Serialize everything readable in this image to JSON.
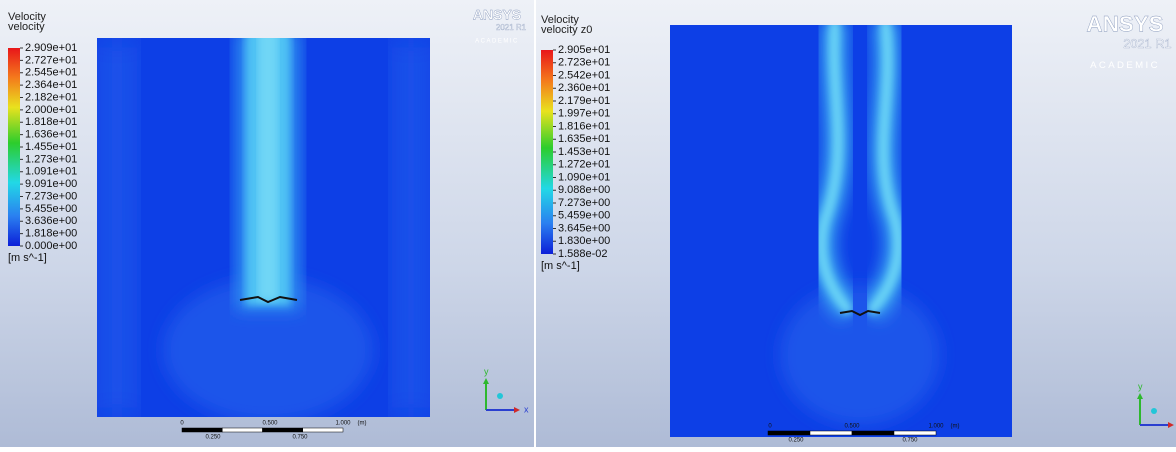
{
  "panels": [
    {
      "legend": {
        "title": "Velocity",
        "variable": "velocity",
        "labels": [
          "2.909e+01",
          "2.727e+01",
          "2.545e+01",
          "2.364e+01",
          "2.182e+01",
          "2.000e+01",
          "1.818e+01",
          "1.636e+01",
          "1.455e+01",
          "1.273e+01",
          "1.091e+01",
          "9.091e+00",
          "7.273e+00",
          "5.455e+00",
          "3.636e+00",
          "1.818e+00",
          "0.000e+00"
        ],
        "units": "[m s^-1]"
      },
      "logo": {
        "brand": "ANSYS",
        "version": "2021 R1",
        "edition": "ACADEMIC"
      },
      "scale_bar": {
        "top_labels": [
          "0",
          "0.500",
          "1.000",
          "(m)"
        ],
        "bottom_labels": [
          "0.250",
          "0.750"
        ]
      },
      "triad": [
        "y",
        "x"
      ]
    },
    {
      "legend": {
        "title": "Velocity",
        "variable": "velocity z0",
        "labels": [
          "2.905e+01",
          "2.723e+01",
          "2.542e+01",
          "2.360e+01",
          "2.179e+01",
          "1.997e+01",
          "1.816e+01",
          "1.635e+01",
          "1.453e+01",
          "1.272e+01",
          "1.090e+01",
          "9.088e+00",
          "7.273e+00",
          "5.459e+00",
          "3.645e+00",
          "1.830e+00",
          "1.588e-02"
        ],
        "units": "[m s^-1]"
      },
      "logo": {
        "brand": "ANSYS",
        "version": "2021 R1",
        "edition": "ACADEMIC"
      },
      "scale_bar": {
        "top_labels": [
          "0",
          "0.500",
          "1.000",
          "(m)"
        ],
        "bottom_labels": [
          "0.250",
          "0.750"
        ]
      },
      "triad": [
        "y"
      ]
    }
  ]
}
